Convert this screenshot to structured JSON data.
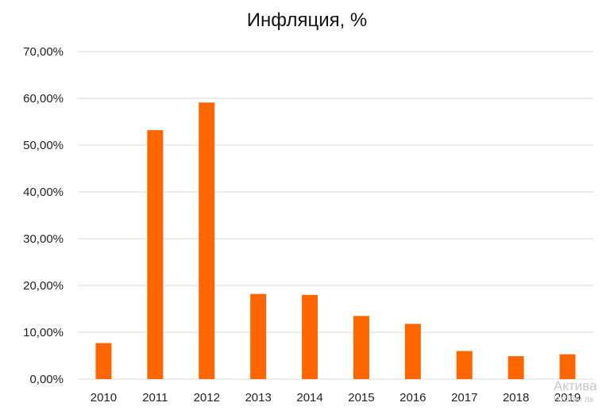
{
  "chart_data": {
    "type": "bar",
    "title": "Инфляция, %",
    "categories": [
      "2010",
      "2011",
      "2012",
      "2013",
      "2014",
      "2015",
      "2016",
      "2017",
      "2018",
      "2019"
    ],
    "values": [
      7.7,
      53.2,
      59.1,
      18.2,
      18.0,
      13.5,
      11.8,
      6.0,
      4.9,
      5.3
    ],
    "ylim": [
      0,
      70
    ],
    "yticks": [
      "0,00%",
      "10,00%",
      "20,00%",
      "30,00%",
      "40,00%",
      "50,00%",
      "60,00%",
      "70,00%"
    ],
    "grid": true,
    "bar_color": "#ff6600"
  },
  "watermark": {
    "line1": "Актива",
    "line2": "Чтобы ак"
  }
}
